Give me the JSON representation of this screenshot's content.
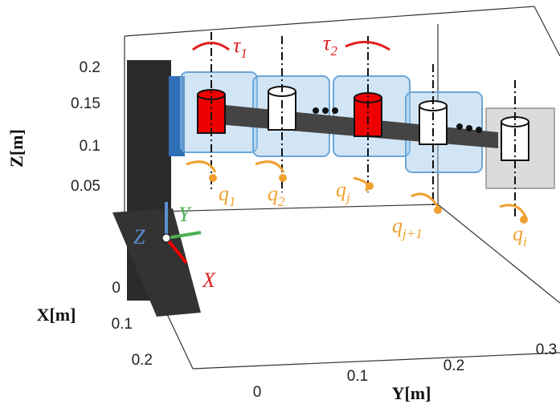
{
  "axes": {
    "z": {
      "label": "Z[m]",
      "ticks": [
        "0.2",
        "0.15",
        "0.1",
        "0.05"
      ]
    },
    "x": {
      "label": "X[m]",
      "ticks": [
        "0",
        "0.1",
        "0.2"
      ]
    },
    "y": {
      "label": "Y[m]",
      "ticks": [
        "0",
        "0.1",
        "0.2",
        "0.3"
      ]
    }
  },
  "frame_labels": {
    "x": "X",
    "y": "Y",
    "z": "Z"
  },
  "torques": [
    {
      "symbol": "τ",
      "subscript": "1"
    },
    {
      "symbol": "τ",
      "subscript": "2"
    }
  ],
  "joints": [
    {
      "symbol": "q",
      "subscript": "1"
    },
    {
      "symbol": "q",
      "subscript": "2"
    },
    {
      "symbol": "q",
      "subscript": "j"
    },
    {
      "symbol": "q",
      "subscript": "j+1"
    },
    {
      "symbol": "q",
      "subscript": "i"
    }
  ]
}
